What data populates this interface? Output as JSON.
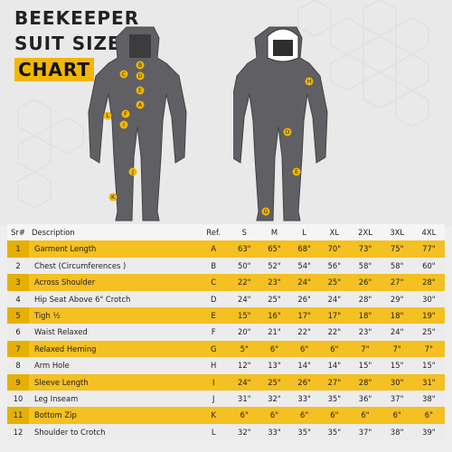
{
  "title": {
    "line1": "BEEKEEPER",
    "line2": "SUIT SIZE",
    "line3": "CHART"
  },
  "figure_labels": {
    "front": [
      "B",
      "C",
      "D",
      "E",
      "F",
      "A",
      "I",
      "L",
      "J",
      "K"
    ],
    "back": [
      "H",
      "D",
      "E",
      "G"
    ]
  },
  "colors": {
    "accent": "#f2b705",
    "suit": "#5f5f64",
    "row_alt": "#ececec"
  },
  "table": {
    "headers": [
      "Sr#",
      "Description",
      "Ref.",
      "S",
      "M",
      "L",
      "XL",
      "2XL",
      "3XL",
      "4XL"
    ],
    "rows": [
      [
        "1",
        "Garment Length",
        "A",
        "63\"",
        "65\"",
        "68\"",
        "70\"",
        "73\"",
        "75\"",
        "77\""
      ],
      [
        "2",
        "Chest (Circumferences )",
        "B",
        "50\"",
        "52\"",
        "54\"",
        "56\"",
        "58\"",
        "58\"",
        "60\""
      ],
      [
        "3",
        "Across Shoulder",
        "C",
        "22\"",
        "23\"",
        "24\"",
        "25\"",
        "26\"",
        "27\"",
        "28\""
      ],
      [
        "4",
        "Hip Seat Above 6\" Crotch",
        "D",
        "24\"",
        "25\"",
        "26\"",
        "24\"",
        "28\"",
        "29\"",
        "30\""
      ],
      [
        "5",
        "Tigh ½",
        "E",
        "15\"",
        "16\"",
        "17\"",
        "17\"",
        "18\"",
        "18\"",
        "19\""
      ],
      [
        "6",
        "Waist Relaxed",
        "F",
        "20\"",
        "21\"",
        "22\"",
        "22\"",
        "23\"",
        "24\"",
        "25\""
      ],
      [
        "7",
        "Relaxed Heming",
        "G",
        "5\"",
        "6\"",
        "6\"",
        "6\"",
        "7\"",
        "7\"",
        "7\""
      ],
      [
        "8",
        "Arm Hole",
        "H",
        "12\"",
        "13\"",
        "14\"",
        "14\"",
        "15\"",
        "15\"",
        "15\""
      ],
      [
        "9",
        "Sleeve Length",
        "I",
        "24\"",
        "25\"",
        "26\"",
        "27\"",
        "28\"",
        "30\"",
        "31\""
      ],
      [
        "10",
        "Leg Inseam",
        "J",
        "31\"",
        "32\"",
        "33\"",
        "35\"",
        "36\"",
        "37\"",
        "38\""
      ],
      [
        "11",
        "Bottom Zip",
        "K",
        "6\"",
        "6\"",
        "6\"",
        "6\"",
        "6\"",
        "6\"",
        "6\""
      ],
      [
        "12",
        "Shoulder to Crotch",
        "L",
        "32\"",
        "33\"",
        "35\"",
        "35\"",
        "37\"",
        "38\"",
        "39\""
      ]
    ]
  }
}
